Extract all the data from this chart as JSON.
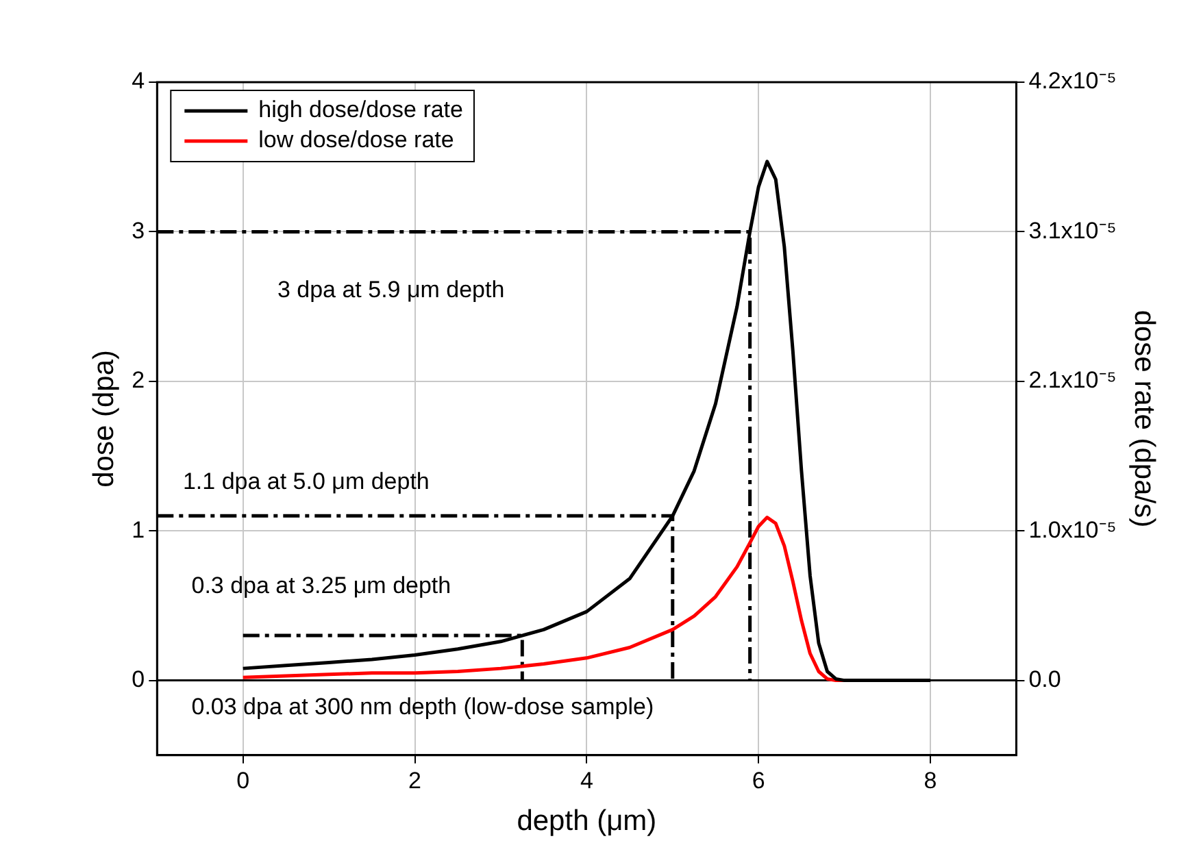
{
  "chart_data": {
    "type": "line",
    "xlabel": "depth (μm)",
    "ylabel": "dose (dpa)",
    "y2label": "dose rate (dpa/s)",
    "xlim": [
      -1,
      9
    ],
    "xticks": [
      0,
      2,
      4,
      6,
      8
    ],
    "ylim": [
      -0.5,
      4
    ],
    "yticks": [
      0,
      1,
      2,
      3,
      4
    ],
    "y2lim": [
      -5.25e-06,
      4.2e-05
    ],
    "y2ticks": [
      {
        "value": 0,
        "label": "0.0"
      },
      {
        "value": 1.05e-05,
        "label": "1.0x10⁻⁵"
      },
      {
        "value": 2.1e-05,
        "label": "2.1x10⁻⁵"
      },
      {
        "value": 3.15e-05,
        "label": "3.1x10⁻⁵"
      },
      {
        "value": 4.2e-05,
        "label": "4.2x10⁻⁵"
      }
    ],
    "grid": true,
    "legend": "top left",
    "marker": "none",
    "series": [
      {
        "name": "high dose/dose rate",
        "color": "#000000",
        "x": [
          0,
          0.5,
          1,
          1.5,
          2,
          2.5,
          3,
          3.25,
          3.5,
          4,
          4.5,
          5,
          5.25,
          5.5,
          5.75,
          5.9,
          6,
          6.1,
          6.2,
          6.3,
          6.4,
          6.5,
          6.6,
          6.7,
          6.8,
          6.9,
          7,
          8
        ],
        "values": [
          0.08,
          0.1,
          0.12,
          0.14,
          0.17,
          0.21,
          0.26,
          0.3,
          0.34,
          0.46,
          0.68,
          1.1,
          1.4,
          1.85,
          2.5,
          3.0,
          3.3,
          3.47,
          3.35,
          2.9,
          2.2,
          1.4,
          0.7,
          0.25,
          0.06,
          0.01,
          0,
          0
        ]
      },
      {
        "name": "low dose/dose rate",
        "color": "#ff0000",
        "x": [
          0,
          0.5,
          1,
          1.5,
          2,
          2.5,
          3,
          3.5,
          4,
          4.5,
          5,
          5.25,
          5.5,
          5.75,
          5.9,
          6,
          6.1,
          6.2,
          6.3,
          6.4,
          6.5,
          6.6,
          6.7,
          6.8,
          6.9,
          7,
          8
        ],
        "values": [
          0.02,
          0.03,
          0.04,
          0.05,
          0.05,
          0.06,
          0.08,
          0.11,
          0.15,
          0.22,
          0.34,
          0.43,
          0.56,
          0.76,
          0.92,
          1.03,
          1.09,
          1.05,
          0.9,
          0.66,
          0.4,
          0.18,
          0.06,
          0.01,
          0,
          0,
          0
        ]
      },
      {
        "color": "#000000",
        "line_style": "dashdot",
        "x": [
          -1,
          5.9,
          5.9
        ],
        "values": [
          3,
          3,
          0
        ]
      },
      {
        "color": "#000000",
        "line_style": "dashdot",
        "x": [
          -1,
          5.0,
          5.0
        ],
        "values": [
          1.1,
          1.1,
          0
        ]
      },
      {
        "color": "#000000",
        "line_style": "dashdot",
        "x": [
          0,
          3.25,
          3.25
        ],
        "values": [
          0.3,
          0.3,
          0
        ]
      }
    ],
    "ref_lines": [
      {
        "axis": "y",
        "value": 0,
        "color": "#000000"
      }
    ],
    "annotations": [
      "3 dpa at 5.9 μm depth",
      "1.1 dpa at 5.0 μm depth",
      "0.3 dpa at 3.25 μm depth",
      "0.03 dpa at 300 nm depth (low-dose sample)"
    ]
  }
}
